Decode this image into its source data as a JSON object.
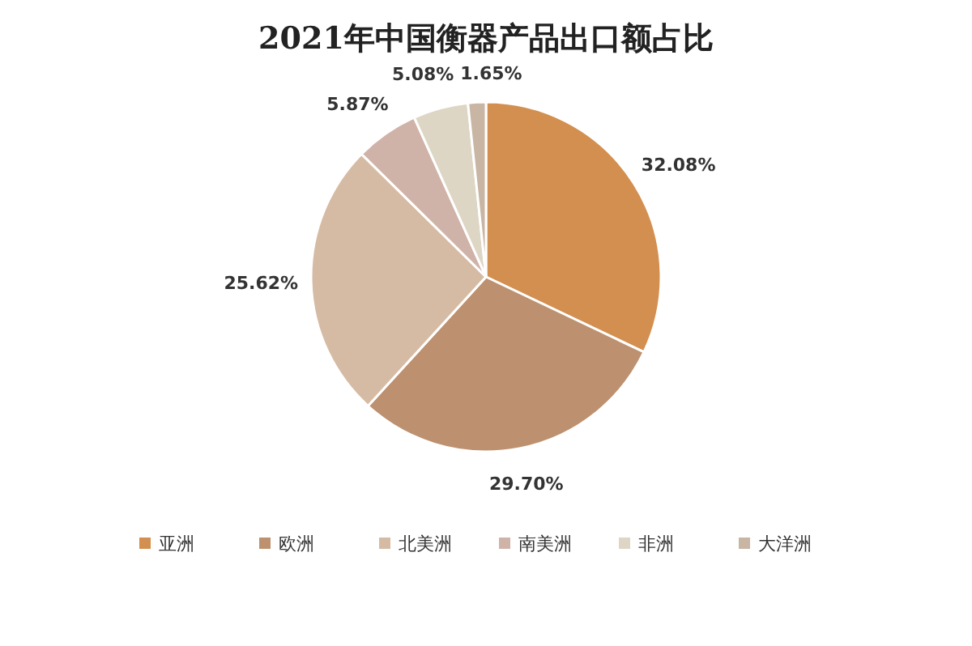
{
  "chart_data": {
    "type": "pie",
    "title": "2021年中国衡器产品出口额占比",
    "categories": [
      "亚洲",
      "欧洲",
      "北美洲",
      "南美洲",
      "非洲",
      "大洋洲"
    ],
    "values": [
      32.08,
      29.7,
      25.62,
      5.87,
      5.08,
      1.65
    ],
    "value_labels": [
      "32.08%",
      "29.70%",
      "25.62%",
      "5.87%",
      "5.08%",
      "1.65%"
    ],
    "colors": [
      "#d38f4f",
      "#bd916f",
      "#d6bba4",
      "#d0b3a8",
      "#ded6c4",
      "#c8b5a4"
    ],
    "legend": "bottom"
  }
}
